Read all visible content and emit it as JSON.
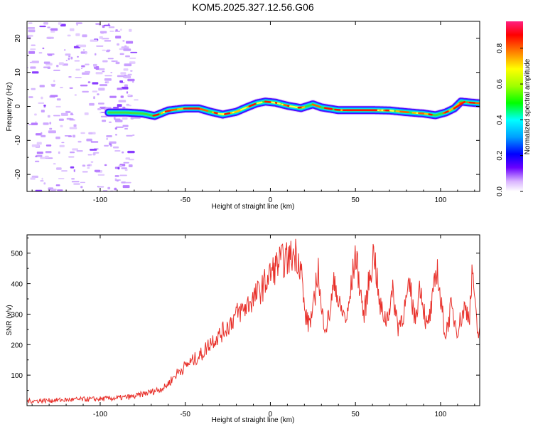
{
  "title": "KOM5.2025.327.12.56.G06",
  "chart_data": [
    {
      "type": "heatmap",
      "xlabel": "Height of straight line (km)",
      "ylabel": "Frequency (Hz)",
      "xlim": [
        -143,
        123
      ],
      "ylim": [
        -25,
        25
      ],
      "xticks": [
        -100,
        -50,
        0,
        50,
        100
      ],
      "yticks": [
        -20,
        -10,
        0,
        10,
        20
      ],
      "noise_region_x": [
        -143,
        -80
      ],
      "ridge": {
        "x": [
          -95,
          -85,
          -75,
          -68,
          -60,
          -50,
          -42,
          -35,
          -28,
          -20,
          -14,
          -8,
          -3,
          3,
          10,
          18,
          25,
          30,
          40,
          50,
          60,
          70,
          80,
          90,
          97,
          103,
          108,
          112,
          118,
          123
        ],
        "freq": [
          -1.8,
          -1.8,
          -2.1,
          -2.8,
          -1.2,
          -0.6,
          -0.6,
          -1.6,
          -2.4,
          -1.6,
          -0.3,
          0.9,
          1.4,
          1.1,
          0.2,
          -0.5,
          0.6,
          -0.3,
          -1.1,
          -1.1,
          -1.1,
          -1.2,
          -1.7,
          -2.1,
          -2.6,
          -1.8,
          -0.6,
          1.4,
          1.1,
          0.9
        ]
      },
      "colorbar": {
        "label": "Normalized spectral amplitude",
        "range": [
          0,
          0.95
        ],
        "ticks": [
          0.0,
          0.2,
          0.4,
          0.6,
          0.8
        ]
      }
    },
    {
      "type": "line",
      "xlabel": "Height of straight line (km)",
      "ylabel": "SNR (v/v)",
      "xlim": [
        -143,
        123
      ],
      "ylim": [
        0,
        560
      ],
      "xticks": [
        -100,
        -50,
        0,
        50,
        100
      ],
      "yticks": [
        100,
        200,
        300,
        400,
        500
      ],
      "series": [
        {
          "name": "SNR",
          "color": "#e8302a",
          "x": [
            -143,
            -130,
            -115,
            -100,
            -90,
            -80,
            -75,
            -70,
            -66,
            -62,
            -58,
            -55,
            -50,
            -45,
            -40,
            -35,
            -30,
            -25,
            -20,
            -15,
            -12,
            -10,
            -5,
            0,
            5,
            10,
            15,
            18,
            20,
            22,
            25,
            28,
            30,
            33,
            35,
            38,
            40,
            45,
            50,
            55,
            58,
            61,
            64,
            68,
            72,
            75,
            78,
            82,
            85,
            88,
            92,
            95,
            98,
            100,
            103,
            106,
            110,
            114,
            117,
            119,
            120,
            122,
            123
          ],
          "values": [
            15,
            17,
            20,
            22,
            25,
            30,
            38,
            45,
            52,
            60,
            85,
            105,
            130,
            150,
            170,
            210,
            230,
            260,
            300,
            320,
            340,
            350,
            385,
            430,
            470,
            480,
            500,
            460,
            310,
            270,
            300,
            460,
            300,
            260,
            310,
            420,
            330,
            280,
            500,
            290,
            410,
            510,
            330,
            280,
            370,
            260,
            300,
            390,
            280,
            400,
            250,
            330,
            460,
            340,
            230,
            320,
            250,
            320,
            300,
            460,
            330,
            230,
            260
          ]
        }
      ]
    }
  ]
}
